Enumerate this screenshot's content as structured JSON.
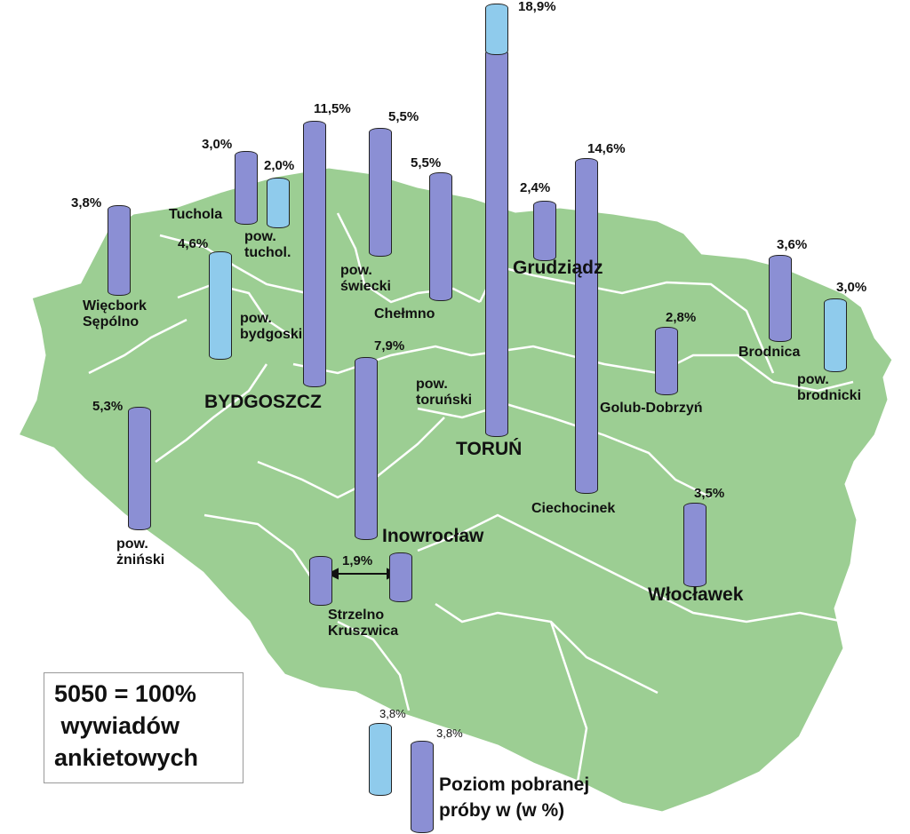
{
  "colors": {
    "land": "#9cce93",
    "border": "#ffffff",
    "bar_dark": "#8b8fd4",
    "bar_light": "#8fcbec"
  },
  "places": {
    "tuchola": "Tuchola",
    "pow_tuchol": "pow.\ntuchol.",
    "wiecbork": "Więcbork\nSępólno",
    "pow_bydgoski": "pow.\nbydgoski",
    "bydgoszcz": "BYDGOSZCZ",
    "pow_swiecki": "pow.\nświecki",
    "chelmno": "Chełmno",
    "grudziadz": "Grudziądz",
    "pow_torunski": "pow.\ntoruński",
    "torun": "TORUŃ",
    "golub": "Golub-Dobrzyń",
    "brodnica": "Brodnica",
    "pow_brodnicki": "pow.\nbrodnicki",
    "ciechocinek": "Ciechocinek",
    "inowroclaw": "Inowrocław",
    "strzelno": "Strzelno\nKruszwica",
    "pow_zninski": "pow.\nżniński",
    "wloclawek": "Włocławek"
  },
  "values": {
    "torun": "18,9%",
    "ciechocinek": "14,6%",
    "bydgoszcz": "11,5%",
    "inowroclaw": "7,9%",
    "swiecki": "5,5%",
    "chelmno": "5,5%",
    "zninski": "5,3%",
    "bydgoski": "4,6%",
    "wiecbork": "3,8%",
    "brodnica": "3,6%",
    "wloclawek": "3,5%",
    "tuchola": "3,0%",
    "brodnicki": "3,0%",
    "golub": "2,8%",
    "grudziadz": "2,4%",
    "tuchol": "2,0%",
    "strzelno": "1,9%"
  },
  "legend": {
    "total_line1": "5050 = 100%",
    "total_line2": " wywiadów",
    "total_line3": "ankietowych",
    "sample_light": "3,8%",
    "sample_dark": "3,8%",
    "caption_line1": "Poziom pobranej",
    "caption_line2": "próby w (w %)"
  }
}
